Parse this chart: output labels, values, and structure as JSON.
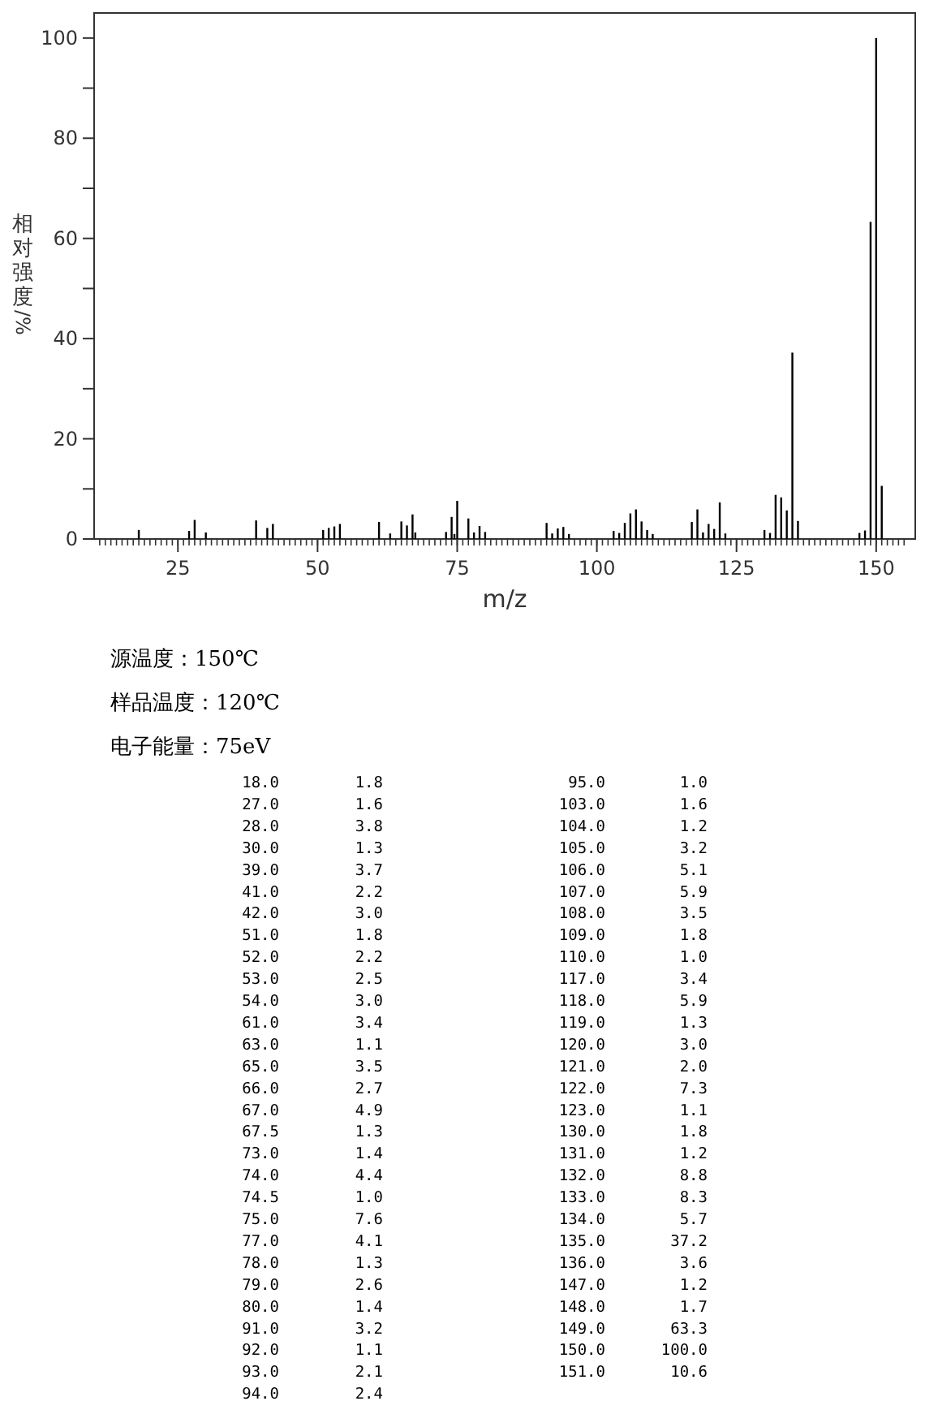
{
  "chart_data": [
    {
      "type": "bar",
      "xlabel": "m/z",
      "ylabel": "相对强度/%",
      "x": [
        18.0,
        27.0,
        28.0,
        30.0,
        39.0,
        41.0,
        42.0,
        51.0,
        52.0,
        53.0,
        54.0,
        61.0,
        63.0,
        65.0,
        66.0,
        67.0,
        67.5,
        73.0,
        74.0,
        74.5,
        75.0,
        77.0,
        78.0,
        79.0,
        80.0,
        91.0,
        92.0,
        93.0,
        94.0,
        95.0,
        103.0,
        104.0,
        105.0,
        106.0,
        107.0,
        108.0,
        109.0,
        110.0,
        117.0,
        118.0,
        119.0,
        120.0,
        121.0,
        122.0,
        123.0,
        130.0,
        131.0,
        132.0,
        133.0,
        134.0,
        135.0,
        136.0,
        147.0,
        148.0,
        149.0,
        150.0,
        151.0
      ],
      "values": [
        1.8,
        1.6,
        3.8,
        1.3,
        3.7,
        2.2,
        3.0,
        1.8,
        2.2,
        2.5,
        3.0,
        3.4,
        1.1,
        3.5,
        2.7,
        4.9,
        1.3,
        1.4,
        4.4,
        1.0,
        7.6,
        4.1,
        1.3,
        2.6,
        1.4,
        3.2,
        1.1,
        2.1,
        2.4,
        1.0,
        1.6,
        1.2,
        3.2,
        5.1,
        5.9,
        3.5,
        1.8,
        1.0,
        3.4,
        5.9,
        1.3,
        3.0,
        2.0,
        7.3,
        1.1,
        1.8,
        1.2,
        8.8,
        8.3,
        5.7,
        37.2,
        3.6,
        1.2,
        1.7,
        63.3,
        100.0,
        10.6
      ],
      "color": "#000000",
      "xlim": [
        10,
        157
      ],
      "xticks": [
        25,
        50,
        75,
        100,
        125,
        150
      ],
      "ylim": [
        0,
        105
      ],
      "yticks": [
        0,
        {
          "value": 10,
          "label": null
        },
        20,
        {
          "value": 30,
          "label": null
        },
        40,
        {
          "value": 50,
          "label": null
        },
        60,
        {
          "value": 70,
          "label": null
        },
        80,
        {
          "value": 90,
          "label": null
        },
        100
      ],
      "annotations": [
        "源温度：150℃",
        "样品温度：120℃",
        "电子能量：75eV"
      ]
    },
    {
      "type": "other",
      "annotations": [
        "18.0",
        "1.8",
        "27.0",
        "1.6",
        "28.0",
        "3.8",
        "30.0",
        "1.3",
        "39.0",
        "3.7",
        "41.0",
        "2.2",
        "42.0",
        "3.0",
        "51.0",
        "1.8",
        "52.0",
        "2.2",
        "53.0",
        "2.5",
        "54.0",
        "3.0",
        "61.0",
        "3.4",
        "63.0",
        "1.1",
        "65.0",
        "3.5",
        "66.0",
        "2.7",
        "67.0",
        "4.9",
        "67.5",
        "1.3",
        "73.0",
        "1.4",
        "74.0",
        "4.4",
        "74.5",
        "1.0",
        "75.0",
        "7.6",
        "77.0",
        "4.1",
        "78.0",
        "1.3",
        "79.0",
        "2.6",
        "80.0",
        "1.4",
        "91.0",
        "3.2",
        "92.0",
        "1.1",
        "93.0",
        "2.1",
        "94.0",
        "2.4",
        "95.0",
        "1.0",
        "103.0",
        "1.6",
        "104.0",
        "1.2",
        "105.0",
        "3.2",
        "106.0",
        "5.1",
        "107.0",
        "5.9",
        "108.0",
        "3.5",
        "109.0",
        "1.8",
        "110.0",
        "1.0",
        "117.0",
        "3.4",
        "118.0",
        "5.9",
        "119.0",
        "1.3",
        "120.0",
        "3.0",
        "121.0",
        "2.0",
        "122.0",
        "7.3",
        "123.0",
        "1.1",
        "130.0",
        "1.8",
        "131.0",
        "1.2",
        "132.0",
        "8.8",
        "133.0",
        "8.3",
        "134.0",
        "5.7",
        "135.0",
        "37.2",
        "136.0",
        "3.6",
        "147.0",
        "1.2",
        "148.0",
        "1.7",
        "149.0",
        "63.3",
        "150.0",
        "100.0",
        "151.0",
        "10.6"
      ]
    }
  ]
}
